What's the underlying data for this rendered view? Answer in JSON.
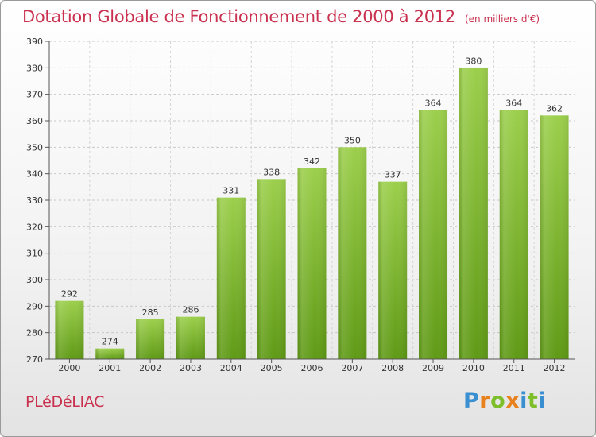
{
  "title": "Dotation Globale de Fonctionnement de 2000 à 2012",
  "unit_note": "(en milliers d'€)",
  "commune": "PLéDéLIAC",
  "logo": {
    "text": [
      "P",
      "r",
      "o",
      "x",
      "i",
      "t",
      "i"
    ],
    "colors": [
      "#3a8fd0",
      "#e8821e",
      "#7cbf2a",
      "#e8821e",
      "#3a8fd0",
      "#7cbf2a",
      "#3a8fd0"
    ]
  },
  "colors": {
    "bar_top": "#9ccf4c",
    "bar_bottom": "#5f9a16",
    "title": "#c9314f"
  },
  "chart_data": {
    "type": "bar",
    "categories": [
      "2000",
      "2001",
      "2002",
      "2003",
      "2004",
      "2005",
      "2006",
      "2007",
      "2008",
      "2009",
      "2010",
      "2011",
      "2012"
    ],
    "values": [
      292,
      274,
      285,
      286,
      331,
      338,
      342,
      350,
      337,
      364,
      380,
      364,
      362
    ],
    "ylim": [
      270,
      390
    ],
    "yticks": [
      270,
      280,
      290,
      300,
      310,
      320,
      330,
      340,
      350,
      360,
      370,
      380,
      390
    ],
    "grid": true
  }
}
